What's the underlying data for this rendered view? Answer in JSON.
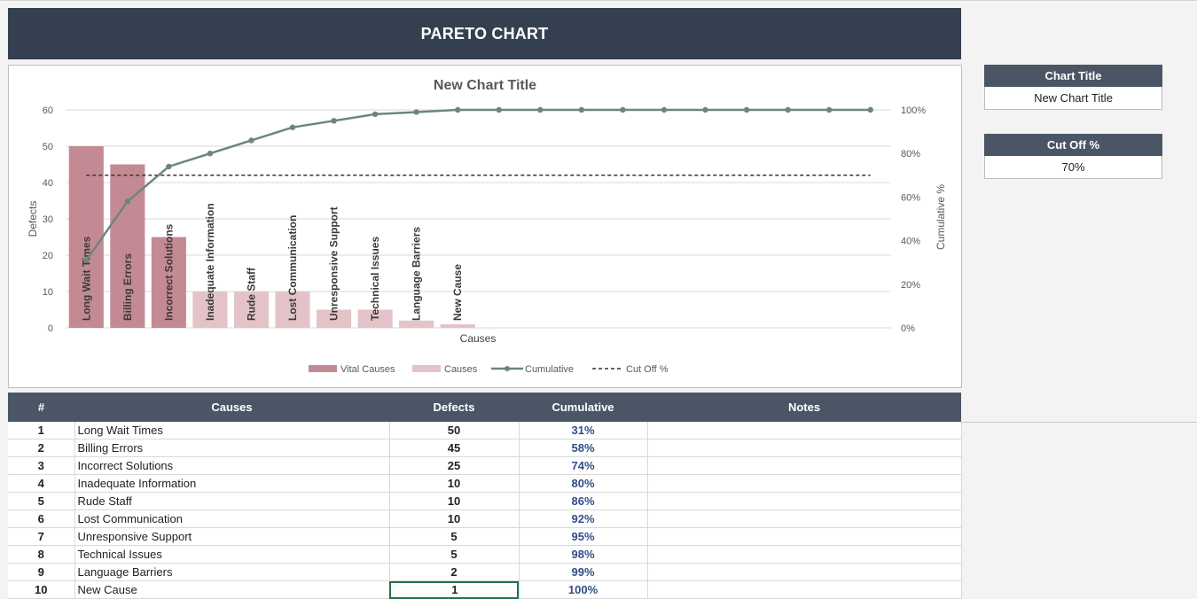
{
  "banner": {
    "title": "PARETO CHART"
  },
  "side": {
    "chart_title_label": "Chart Title",
    "chart_title_value": "New Chart Title",
    "cutoff_label": "Cut Off %",
    "cutoff_value": "70%"
  },
  "table": {
    "headers": [
      "#",
      "Causes",
      "Defects",
      "Cumulative",
      "Notes"
    ],
    "rows": [
      {
        "n": "1",
        "cause": "Long Wait Times",
        "defects": "50",
        "cum": "31%",
        "notes": ""
      },
      {
        "n": "2",
        "cause": "Billing Errors",
        "defects": "45",
        "cum": "58%",
        "notes": ""
      },
      {
        "n": "3",
        "cause": "Incorrect Solutions",
        "defects": "25",
        "cum": "74%",
        "notes": ""
      },
      {
        "n": "4",
        "cause": "Inadequate Information",
        "defects": "10",
        "cum": "80%",
        "notes": ""
      },
      {
        "n": "5",
        "cause": "Rude Staff",
        "defects": "10",
        "cum": "86%",
        "notes": ""
      },
      {
        "n": "6",
        "cause": "Lost Communication",
        "defects": "10",
        "cum": "92%",
        "notes": ""
      },
      {
        "n": "7",
        "cause": "Unresponsive Support",
        "defects": "5",
        "cum": "95%",
        "notes": ""
      },
      {
        "n": "8",
        "cause": "Technical Issues",
        "defects": "5",
        "cum": "98%",
        "notes": ""
      },
      {
        "n": "9",
        "cause": "Language Barriers",
        "defects": "2",
        "cum": "99%",
        "notes": ""
      },
      {
        "n": "10",
        "cause": "New Cause",
        "defects": "1",
        "cum": "100%",
        "notes": ""
      }
    ]
  },
  "chart_data": {
    "type": "bar",
    "title": "New Chart Title",
    "xlabel": "Causes",
    "ylabel": "Defects",
    "y2label": "Cumulative %",
    "ylim": [
      0,
      60
    ],
    "y_ticks": [
      0,
      10,
      20,
      30,
      40,
      50,
      60
    ],
    "y2lim": [
      0,
      100
    ],
    "y2_ticks": [
      "0%",
      "20%",
      "40%",
      "60%",
      "80%",
      "100%"
    ],
    "categories": [
      "Long Wait Times",
      "Billing Errors",
      "Incorrect Solutions",
      "Inadequate Information",
      "Rude Staff",
      "Lost Communication",
      "Unresponsive Support",
      "Technical Issues",
      "Language Barriers",
      "New Cause",
      "",
      "",
      "",
      "",
      "",
      "",
      "",
      "",
      "",
      ""
    ],
    "series": [
      {
        "name": "Vital Causes",
        "kind": "bar",
        "color": "#c48a93",
        "values": [
          50,
          45,
          25,
          null,
          null,
          null,
          null,
          null,
          null,
          null,
          null,
          null,
          null,
          null,
          null,
          null,
          null,
          null,
          null,
          null
        ]
      },
      {
        "name": "Causes",
        "kind": "bar",
        "color": "#e3c3c8",
        "values": [
          null,
          null,
          null,
          10,
          10,
          10,
          5,
          5,
          2,
          1,
          null,
          null,
          null,
          null,
          null,
          null,
          null,
          null,
          null,
          null
        ]
      },
      {
        "name": "Cumulative",
        "kind": "line",
        "axis": "right",
        "color": "#6d8582",
        "values": [
          31,
          58,
          74,
          80,
          86,
          92,
          95,
          98,
          99,
          100,
          100,
          100,
          100,
          100,
          100,
          100,
          100,
          100,
          100,
          100
        ]
      },
      {
        "name": "Cut Off %",
        "kind": "dashed",
        "axis": "right",
        "color": "#333333",
        "values": [
          70,
          70,
          70,
          70,
          70,
          70,
          70,
          70,
          70,
          70,
          70,
          70,
          70,
          70,
          70,
          70,
          70,
          70,
          70,
          70
        ]
      }
    ],
    "legend": "bottom",
    "grid": true
  }
}
